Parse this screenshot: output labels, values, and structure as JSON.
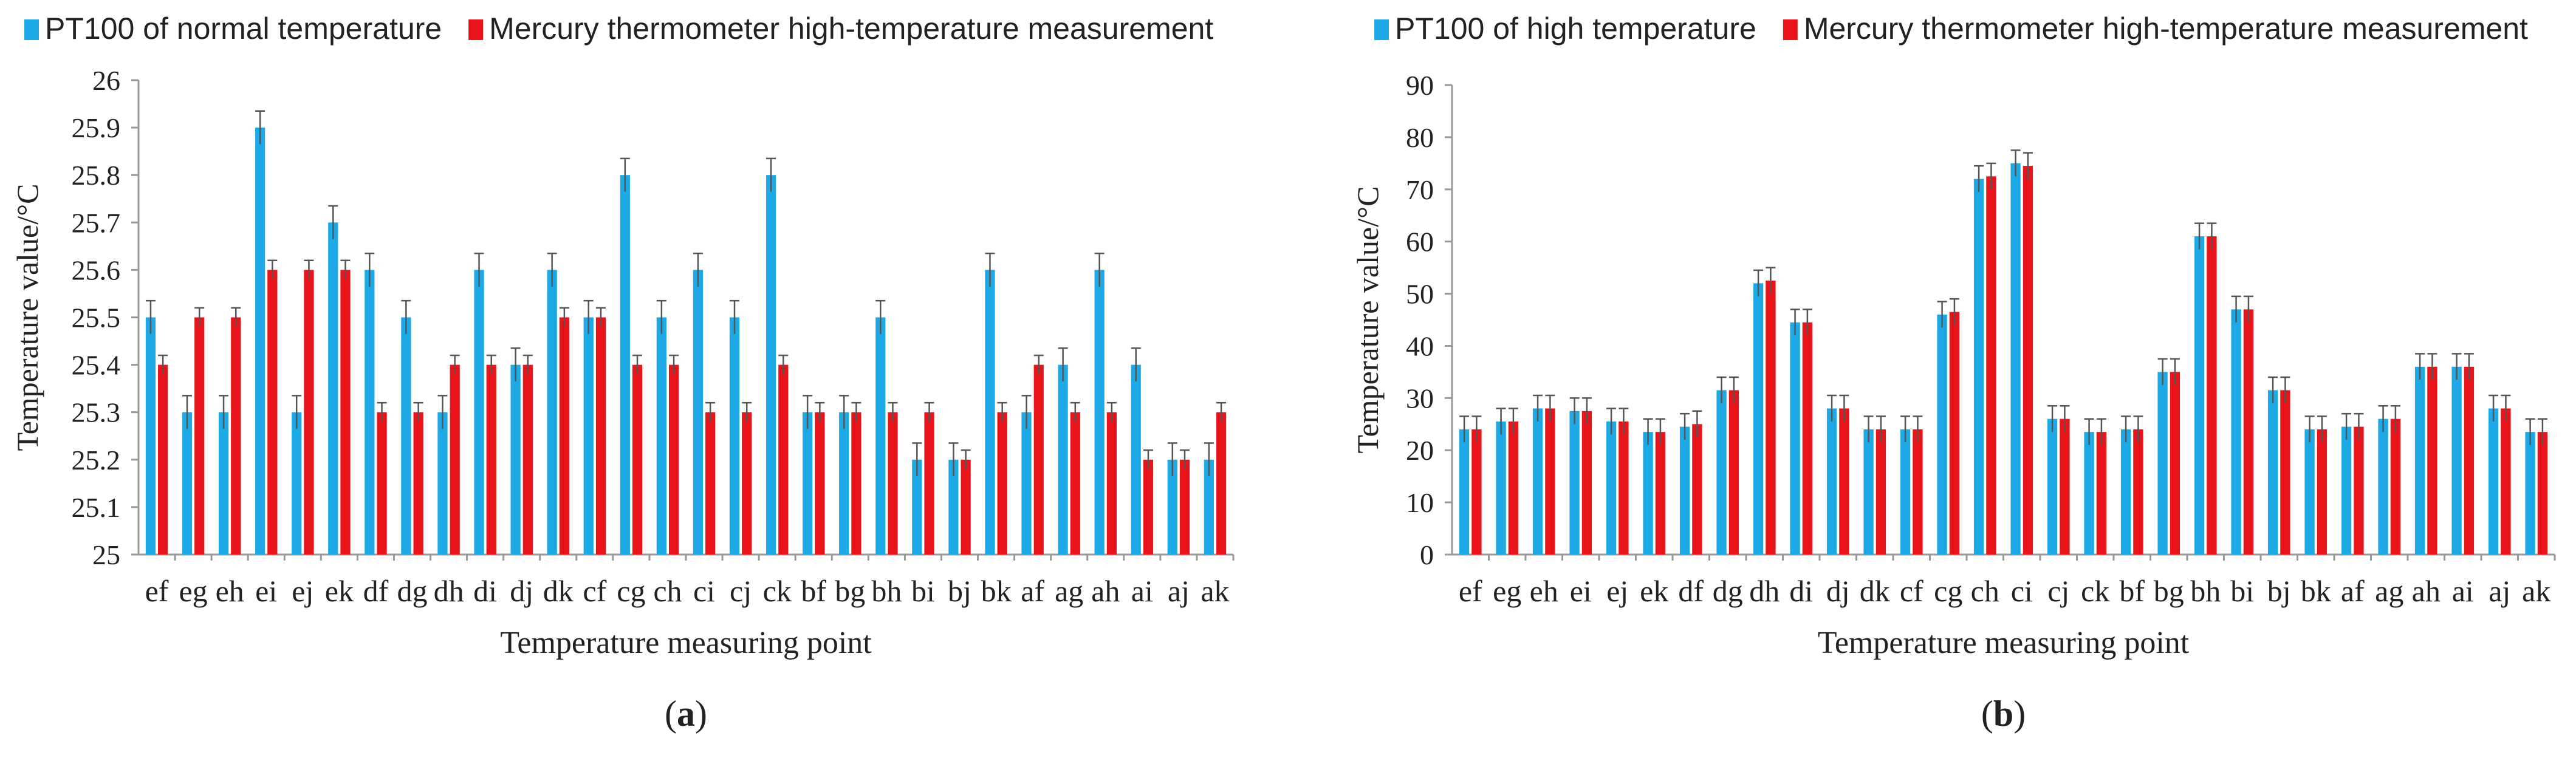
{
  "colors": {
    "series_a": "#1CA9E6",
    "series_b": "#E8141A",
    "axis": "#999999",
    "text": "#222222",
    "errbar": "#555555"
  },
  "chart_data": [
    {
      "type": "bar",
      "panel_label": "a",
      "xlabel": "Temperature measuring point",
      "ylabel": "Temperature  value/°C",
      "ylim": [
        25,
        26
      ],
      "yticks": [
        "25",
        "25.1",
        "25.2",
        "25.3",
        "25.4",
        "25.5",
        "25.6",
        "25.7",
        "25.8",
        "25.9",
        "26"
      ],
      "legend_position": "top-left",
      "categories": [
        "ef",
        "eg",
        "eh",
        "ei",
        "ej",
        "ek",
        "df",
        "dg",
        "dh",
        "di",
        "dj",
        "dk",
        "cf",
        "cg",
        "ch",
        "ci",
        "cj",
        "ck",
        "bf",
        "bg",
        "bh",
        "bi",
        "bj",
        "bk",
        "af",
        "ag",
        "ah",
        "ai",
        "aj",
        "ak"
      ],
      "series": [
        {
          "name": "PT100 of normal temperature",
          "error": 0.035,
          "values": [
            25.5,
            25.3,
            25.3,
            25.9,
            25.3,
            25.7,
            25.6,
            25.5,
            25.3,
            25.6,
            25.4,
            25.6,
            25.5,
            25.8,
            25.5,
            25.6,
            25.5,
            25.8,
            25.3,
            25.3,
            25.5,
            25.2,
            25.2,
            25.6,
            25.3,
            25.4,
            25.6,
            25.4,
            25.2,
            25.2
          ]
        },
        {
          "name": "Mercury thermometer high-temperature measurement",
          "error": 0.02,
          "values": [
            25.4,
            25.5,
            25.5,
            25.6,
            25.6,
            25.6,
            25.3,
            25.3,
            25.4,
            25.4,
            25.4,
            25.5,
            25.5,
            25.4,
            25.4,
            25.3,
            25.3,
            25.4,
            25.3,
            25.3,
            25.3,
            25.3,
            25.2,
            25.3,
            25.4,
            25.3,
            25.3,
            25.2,
            25.2,
            25.3
          ]
        }
      ]
    },
    {
      "type": "bar",
      "panel_label": "b",
      "xlabel": "Temperature measuring point",
      "ylabel": "Temperature  value/°C",
      "ylim": [
        0,
        90
      ],
      "yticks": [
        "0",
        "10",
        "20",
        "30",
        "40",
        "50",
        "60",
        "70",
        "80",
        "90"
      ],
      "legend_position": "top-left",
      "categories": [
        "ef",
        "eg",
        "eh",
        "ei",
        "ej",
        "ek",
        "df",
        "dg",
        "dh",
        "di",
        "dj",
        "dk",
        "cf",
        "cg",
        "ch",
        "ci",
        "cj",
        "ck",
        "bf",
        "bg",
        "bh",
        "bi",
        "bj",
        "bk",
        "af",
        "ag",
        "ah",
        "ai",
        "aj",
        "ak"
      ],
      "series": [
        {
          "name": "PT100 of high temperature",
          "error": 2.5,
          "values": [
            24,
            25.5,
            28,
            27.5,
            25.5,
            23.5,
            24.5,
            31.5,
            52,
            44.5,
            28,
            24,
            24,
            46,
            72,
            75,
            26,
            23.5,
            24,
            35,
            61,
            47,
            31.5,
            24,
            24.5,
            26,
            36,
            36,
            28,
            23.5
          ]
        },
        {
          "name": "Mercury thermometer high-temperature measurement",
          "error": 2.5,
          "values": [
            24,
            25.5,
            28,
            27.5,
            25.5,
            23.5,
            25,
            31.5,
            52.5,
            44.5,
            28,
            24,
            24,
            46.5,
            72.5,
            74.5,
            26,
            23.5,
            24,
            35,
            61,
            47,
            31.5,
            24,
            24.5,
            26,
            36,
            36,
            28,
            23.5
          ]
        }
      ]
    }
  ]
}
